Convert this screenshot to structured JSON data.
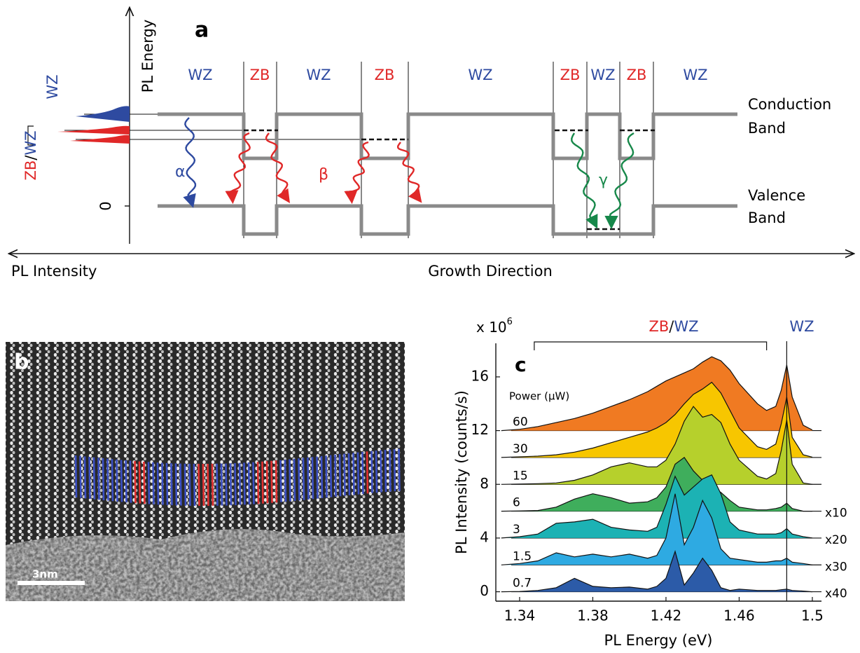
{
  "panel_a": {
    "label": "a",
    "y_axis": "PL Energy",
    "zero": "0",
    "x_axis": "Growth Direction",
    "intensity_axis": "PL Intensity",
    "regions": [
      "WZ",
      "ZB",
      "WZ",
      "ZB",
      "WZ",
      "ZB",
      "WZ",
      "ZB",
      "WZ"
    ],
    "conduction": [
      "Conduction",
      "Band"
    ],
    "valence": [
      "Valence",
      "Band"
    ],
    "transitions": [
      "α",
      "β",
      "γ"
    ],
    "spectrum_labels": {
      "wz": "WZ",
      "zb": "ZB",
      "sep": "/",
      "wz_pair": "WZ"
    }
  },
  "panel_b": {
    "label": "b",
    "scale_bar": "3nm"
  },
  "chart_data": {
    "type": "area",
    "label": "c",
    "x_label": "PL Energy (eV)",
    "y_label": "PL Intensity (counts/s)",
    "y_multiplier": "x 10",
    "y_multiplier_exp": "6",
    "legend_title": "Power (µW)",
    "annotation": {
      "zb": "ZB",
      "sep": "/",
      "wz_pair": "WZ",
      "wz": "WZ",
      "bracket_x": [
        1.348,
        1.475
      ],
      "reference_x": 1.486
    },
    "xlim": [
      1.327,
      1.505
    ],
    "xticks": [
      1.34,
      1.38,
      1.42,
      1.46,
      1.5
    ],
    "ylim": [
      -0.7,
      18.5
    ],
    "yticks": [
      0,
      4,
      8,
      12,
      16
    ],
    "x": [
      1.33,
      1.34,
      1.35,
      1.36,
      1.37,
      1.38,
      1.39,
      1.4,
      1.41,
      1.415,
      1.42,
      1.425,
      1.43,
      1.435,
      1.44,
      1.445,
      1.45,
      1.455,
      1.46,
      1.47,
      1.475,
      1.48,
      1.483,
      1.486,
      1.489,
      1.495,
      1.5
    ],
    "series": [
      {
        "name": "60",
        "color": "#f07a22",
        "baseline": 12,
        "values": [
          12.0,
          12.1,
          12.3,
          12.6,
          12.9,
          13.3,
          13.8,
          14.3,
          14.9,
          15.3,
          15.7,
          16.0,
          16.3,
          16.6,
          17.1,
          17.5,
          17.2,
          16.5,
          15.5,
          14.0,
          13.5,
          13.8,
          15.0,
          16.9,
          14.5,
          12.4,
          12.05
        ]
      },
      {
        "name": "30",
        "color": "#f7c600",
        "baseline": 10,
        "values": [
          10.0,
          10.05,
          10.1,
          10.2,
          10.4,
          10.7,
          11.1,
          11.5,
          11.9,
          12.2,
          12.6,
          13.2,
          14.0,
          14.7,
          15.1,
          15.6,
          14.8,
          13.5,
          12.2,
          10.8,
          10.6,
          11.0,
          12.5,
          14.5,
          11.5,
          10.2,
          10.02
        ]
      },
      {
        "name": "15",
        "color": "#b6d02c",
        "baseline": 8,
        "values": [
          8.0,
          8.02,
          8.05,
          8.1,
          8.3,
          8.7,
          9.3,
          9.6,
          9.3,
          9.3,
          9.8,
          11.0,
          12.7,
          13.8,
          13.0,
          13.2,
          12.6,
          11.0,
          9.8,
          8.6,
          8.4,
          8.8,
          10.5,
          12.8,
          9.5,
          8.1,
          8.0
        ]
      },
      {
        "name": "6",
        "color": "#3fae5c",
        "baseline": 6,
        "scale_label": "x10",
        "values": [
          6.0,
          6.02,
          6.05,
          6.3,
          6.9,
          7.3,
          7.0,
          6.6,
          6.7,
          7.0,
          7.8,
          9.5,
          10.0,
          9.0,
          8.3,
          7.8,
          7.4,
          6.8,
          6.3,
          6.1,
          6.1,
          6.2,
          6.3,
          6.6,
          6.2,
          6.0,
          6.0
        ]
      },
      {
        "name": "3",
        "color": "#1cb2b4",
        "baseline": 4,
        "scale_label": "x20",
        "values": [
          4.0,
          4.1,
          4.3,
          5.1,
          5.2,
          5.4,
          4.8,
          4.6,
          4.5,
          4.8,
          6.5,
          8.6,
          7.2,
          7.8,
          8.4,
          8.7,
          7.3,
          5.2,
          4.6,
          4.3,
          4.3,
          4.3,
          4.4,
          4.7,
          4.3,
          4.1,
          4.0
        ]
      },
      {
        "name": "1.5",
        "color": "#2eaae2",
        "baseline": 2,
        "scale_label": "x30",
        "values": [
          2.0,
          2.1,
          2.3,
          2.9,
          2.6,
          2.8,
          2.6,
          2.8,
          2.5,
          2.7,
          4.0,
          7.3,
          3.5,
          4.8,
          6.8,
          5.5,
          3.2,
          2.5,
          2.4,
          2.2,
          2.2,
          2.3,
          2.3,
          2.5,
          2.2,
          2.1,
          2.0
        ]
      },
      {
        "name": "0.7",
        "color": "#2c5ba8",
        "baseline": 0,
        "scale_label": "x40",
        "values": [
          0.0,
          0.02,
          0.1,
          0.3,
          1.0,
          0.4,
          0.3,
          0.35,
          0.2,
          0.4,
          1.0,
          3.0,
          0.5,
          1.4,
          2.5,
          1.6,
          0.3,
          0.1,
          0.2,
          0.1,
          0.1,
          0.1,
          0.15,
          0.2,
          0.1,
          0.05,
          0.0
        ]
      }
    ]
  }
}
